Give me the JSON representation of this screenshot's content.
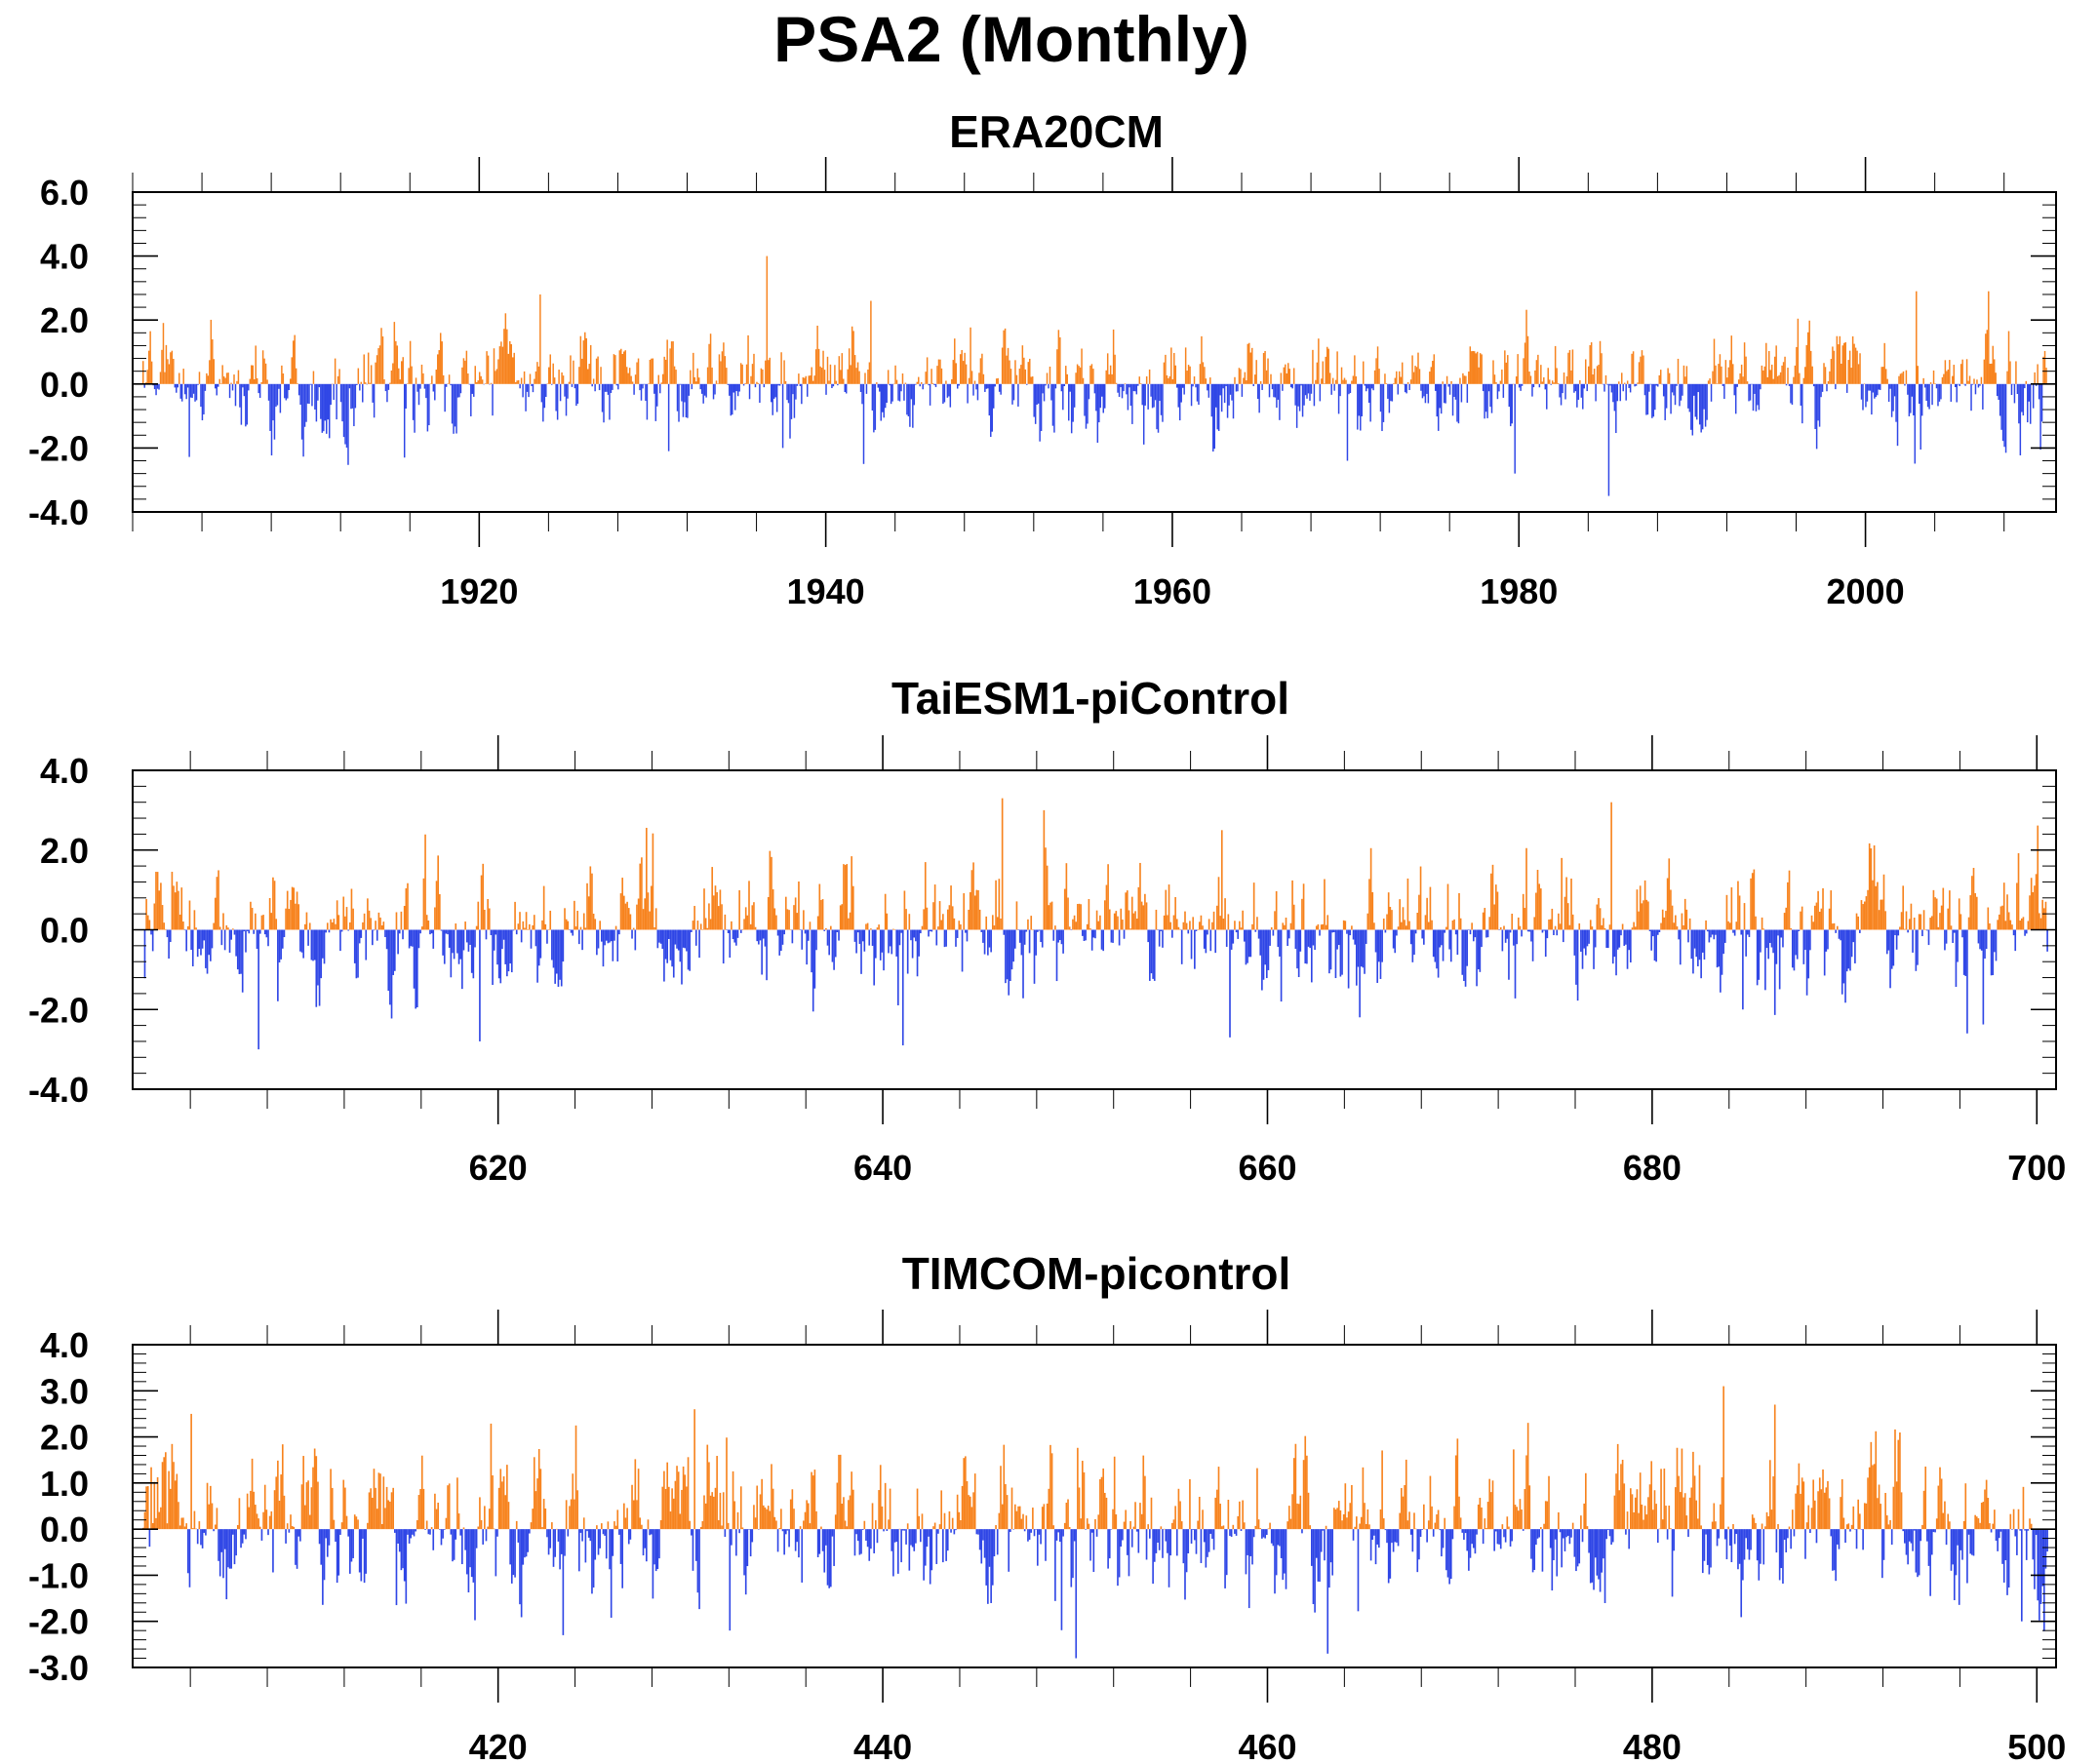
{
  "title": "PSA2 (Monthly)",
  "colors": {
    "positive": "#f7831e",
    "negative": "#2f46e6",
    "axis": "#000000"
  },
  "chart_data": [
    {
      "type": "bar",
      "title": "ERA20CM",
      "xlabel": "",
      "ylabel": "",
      "x_start": 1900,
      "x_end": 2011,
      "ylim": [
        -4.0,
        6.0
      ],
      "ytick_step": 2,
      "yminor_step": 0.4,
      "ytick_labels": [
        "-4.0",
        "-2.0",
        "0.0",
        "2.0",
        "4.0",
        "6.0"
      ],
      "xtick_values": [
        1920,
        1940,
        1960,
        1980,
        2000
      ],
      "xtick_labels": [
        "1920",
        "1940",
        "1960",
        "1980",
        "2000"
      ],
      "xminor_step": 4,
      "grid": false,
      "legend": "none",
      "n_months": 1332,
      "peak_positive": 4.0,
      "peak_negative": -3.5,
      "features": [
        {
          "x": 1936.0,
          "v": 4.0
        },
        {
          "x": 1922.9,
          "v": 2.8
        },
        {
          "x": 2002.3,
          "v": 2.9
        },
        {
          "x": 2006.5,
          "v": 2.9
        },
        {
          "x": 1942.0,
          "v": 2.6
        },
        {
          "x": 1984.6,
          "v": -3.5
        },
        {
          "x": 1941.6,
          "v": -2.5
        },
        {
          "x": 1915.1,
          "v": -2.3
        },
        {
          "x": 1930.3,
          "v": -2.1
        },
        {
          "x": 1969.5,
          "v": -2.4
        },
        {
          "x": 1979.2,
          "v": -2.8
        },
        {
          "x": 1936.9,
          "v": -2.0
        }
      ]
    },
    {
      "type": "bar",
      "title": "TaiESM1-piControl",
      "xlabel": "",
      "ylabel": "",
      "x_start": 601,
      "x_end": 701,
      "ylim": [
        -4.0,
        4.0
      ],
      "ytick_step": 2,
      "yminor_step": 0.4,
      "ytick_labels": [
        "-4.0",
        "-2.0",
        "0.0",
        "2.0",
        "4.0"
      ],
      "xtick_values": [
        620,
        640,
        660,
        680,
        700
      ],
      "xtick_labels": [
        "620",
        "640",
        "660",
        "680",
        "700"
      ],
      "xminor_step": 4,
      "grid": false,
      "legend": "none",
      "n_months": 1200,
      "peak_positive": 3.3,
      "peak_negative": -3.0,
      "features": [
        {
          "x": 645.7,
          "v": 3.3
        },
        {
          "x": 647.8,
          "v": 3.0
        },
        {
          "x": 677.3,
          "v": 3.2
        },
        {
          "x": 657.1,
          "v": 2.5
        },
        {
          "x": 607.0,
          "v": -3.0
        },
        {
          "x": 640.5,
          "v": -2.9
        },
        {
          "x": 618.5,
          "v": -2.8
        },
        {
          "x": 657.5,
          "v": -2.7
        },
        {
          "x": 660.2,
          "v": -1.8
        },
        {
          "x": 695.8,
          "v": -2.6
        },
        {
          "x": 684.2,
          "v": -2.0
        }
      ]
    },
    {
      "type": "bar",
      "title": "TIMCOM-picontrol",
      "xlabel": "",
      "ylabel": "",
      "x_start": 401,
      "x_end": 501,
      "ylim": [
        -3.0,
        4.0
      ],
      "ytick_step": 1,
      "yminor_step": 0.2,
      "ytick_labels": [
        "-3.0",
        "-2.0",
        "-1.0",
        "0.0",
        "1.0",
        "2.0",
        "3.0",
        "4.0"
      ],
      "xtick_values": [
        420,
        440,
        460,
        480,
        500
      ],
      "xtick_labels": [
        "420",
        "440",
        "460",
        "480",
        "500"
      ],
      "xminor_step": 4,
      "grid": false,
      "legend": "none",
      "n_months": 1200,
      "peak_positive": 3.1,
      "peak_negative": -2.8,
      "features": [
        {
          "x": 429.7,
          "v": 2.6
        },
        {
          "x": 483.2,
          "v": 3.1
        },
        {
          "x": 485.8,
          "v": 2.7
        },
        {
          "x": 403.5,
          "v": 2.5
        },
        {
          "x": 449.5,
          "v": -2.8
        },
        {
          "x": 462.6,
          "v": -2.7
        },
        {
          "x": 422.8,
          "v": -2.3
        },
        {
          "x": 431.5,
          "v": -2.2
        },
        {
          "x": 498.7,
          "v": -2.0
        }
      ]
    }
  ]
}
